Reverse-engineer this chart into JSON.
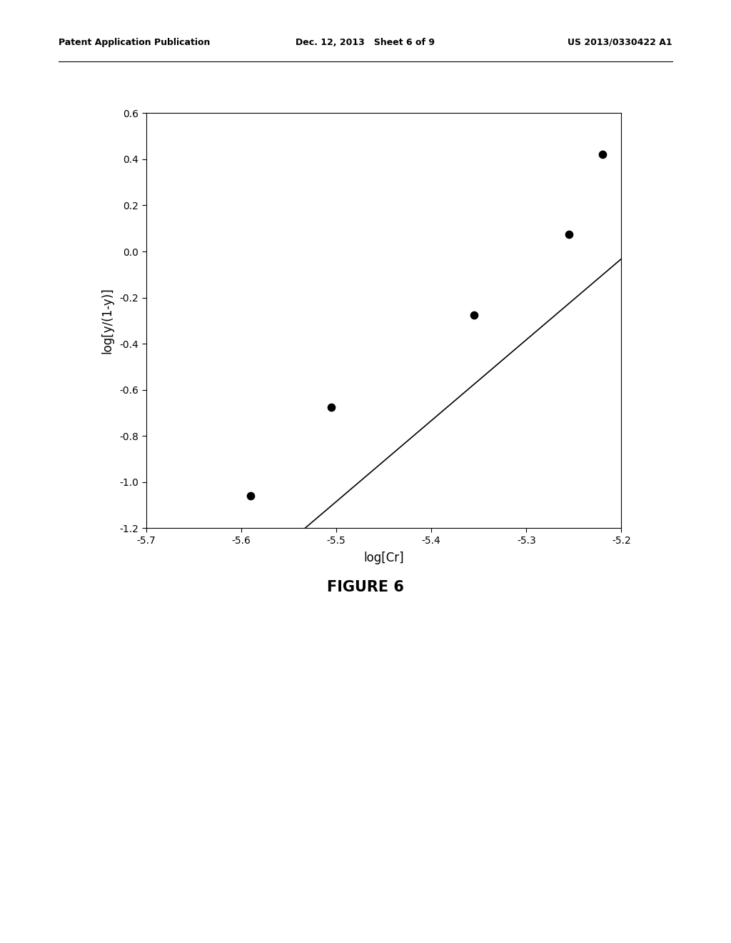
{
  "scatter_x": [
    -5.59,
    -5.505,
    -5.355,
    -5.255,
    -5.22
  ],
  "scatter_y": [
    -1.06,
    -0.675,
    -0.275,
    0.075,
    0.42
  ],
  "line_x_start": -5.65,
  "line_x_end": -5.2,
  "line_slope": 3.51,
  "line_intercept": 18.22,
  "xlabel": "log[Cr]",
  "ylabel": "log[y/(1-y)]",
  "xlim": [
    -5.7,
    -5.2
  ],
  "ylim": [
    -1.2,
    0.6
  ],
  "xticks": [
    -5.7,
    -5.6,
    -5.5,
    -5.4,
    -5.3,
    -5.2
  ],
  "yticks": [
    -1.2,
    -1.0,
    -0.8,
    -0.6,
    -0.4,
    -0.2,
    0.0,
    0.2,
    0.4,
    0.6
  ],
  "figure_caption": "FIGURE 6",
  "header_left": "Patent Application Publication",
  "header_center": "Dec. 12, 2013   Sheet 6 of 9",
  "header_right": "US 2013/0330422 A1",
  "bg_color": "#ffffff",
  "line_color": "#000000",
  "dot_color": "#000000",
  "dot_size": 55
}
